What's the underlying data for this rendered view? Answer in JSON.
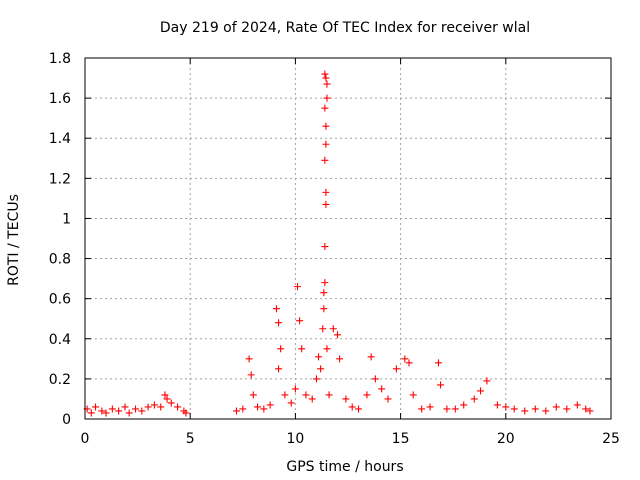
{
  "chart_data": {
    "type": "scatter",
    "title": "Day 219 of 2024, Rate Of TEC Index for receiver wlal",
    "xlabel": "GPS time / hours",
    "ylabel": "ROTI / TECUs",
    "xlim": [
      0,
      25
    ],
    "ylim": [
      0,
      1.8
    ],
    "xticks": [
      0,
      5,
      10,
      15,
      20,
      25
    ],
    "xtick_labels": [
      "0",
      "5",
      "10",
      "15",
      "20",
      "25"
    ],
    "yticks": [
      0,
      0.2,
      0.4,
      0.6,
      0.8,
      1.0,
      1.2,
      1.4,
      1.6,
      1.8
    ],
    "ytick_labels": [
      "0",
      "0.2",
      "0.4",
      "0.6",
      "0.8",
      "1",
      "1.2",
      "1.4",
      "1.6",
      "1.8"
    ],
    "grid": true,
    "marker": "+",
    "color": "#ff0000",
    "x": [
      0.1,
      0.3,
      0.5,
      0.8,
      1.0,
      1.3,
      1.6,
      1.9,
      2.1,
      2.4,
      2.7,
      3.0,
      3.3,
      3.6,
      3.8,
      3.9,
      4.1,
      4.4,
      4.7,
      4.8,
      7.2,
      7.5,
      7.8,
      7.9,
      8.0,
      8.2,
      8.5,
      8.8,
      9.1,
      9.2,
      9.3,
      9.2,
      9.5,
      9.8,
      10.0,
      10.1,
      10.2,
      10.3,
      10.5,
      10.8,
      11.0,
      11.1,
      11.2,
      11.3,
      11.35,
      11.4,
      11.4,
      11.45,
      11.45,
      11.4,
      11.45,
      11.45,
      11.4,
      11.5,
      11.5,
      11.45,
      11.4,
      11.35,
      11.5,
      11.6,
      11.8,
      12.0,
      12.1,
      12.4,
      12.7,
      13.0,
      13.4,
      13.6,
      13.8,
      14.1,
      14.4,
      14.8,
      15.2,
      15.4,
      15.6,
      16.0,
      16.4,
      16.8,
      16.9,
      17.2,
      17.6,
      18.0,
      18.5,
      18.8,
      19.1,
      19.6,
      20.0,
      20.4,
      20.9,
      21.4,
      21.9,
      22.4,
      22.9,
      23.4,
      23.8,
      24.0
    ],
    "y": [
      0.05,
      0.03,
      0.06,
      0.04,
      0.03,
      0.05,
      0.04,
      0.06,
      0.03,
      0.05,
      0.04,
      0.06,
      0.07,
      0.06,
      0.12,
      0.1,
      0.08,
      0.06,
      0.04,
      0.03,
      0.04,
      0.05,
      0.3,
      0.22,
      0.12,
      0.06,
      0.05,
      0.07,
      0.55,
      0.48,
      0.35,
      0.25,
      0.12,
      0.08,
      0.15,
      0.66,
      0.49,
      0.35,
      0.12,
      0.1,
      0.2,
      0.31,
      0.25,
      0.45,
      0.63,
      0.68,
      0.86,
      1.07,
      1.13,
      1.29,
      1.37,
      1.46,
      1.55,
      1.6,
      1.67,
      1.7,
      1.72,
      0.55,
      0.35,
      0.12,
      0.45,
      0.42,
      0.3,
      0.1,
      0.06,
      0.05,
      0.12,
      0.31,
      0.2,
      0.15,
      0.1,
      0.25,
      0.3,
      0.28,
      0.12,
      0.05,
      0.06,
      0.28,
      0.17,
      0.05,
      0.05,
      0.07,
      0.1,
      0.14,
      0.19,
      0.07,
      0.06,
      0.05,
      0.04,
      0.05,
      0.04,
      0.06,
      0.05,
      0.07,
      0.05,
      0.04
    ]
  }
}
